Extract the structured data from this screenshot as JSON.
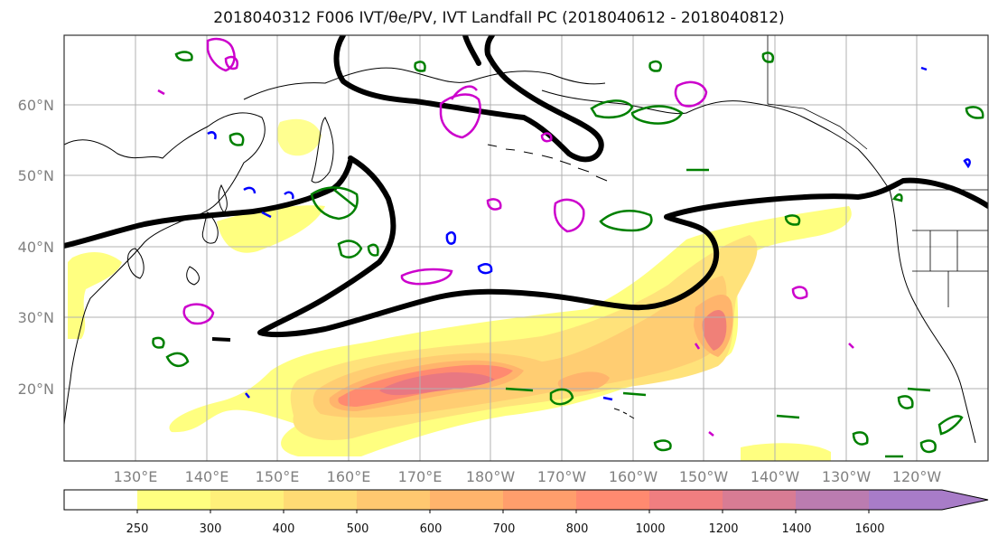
{
  "title": "2018040312 F006 IVT/θe/PV, IVT Landfall PC (2018040612 - 2018040812)",
  "lat_labels": [
    "60°N",
    "50°N",
    "40°N",
    "30°N",
    "20°N"
  ],
  "lon_labels": [
    "130°E",
    "140°E",
    "150°E",
    "160°E",
    "170°E",
    "180°W",
    "170°W",
    "160°W",
    "150°W",
    "140°W",
    "130°W",
    "120°W"
  ],
  "colorbar": {
    "tick_labels": [
      "250",
      "300",
      "400",
      "500",
      "600",
      "700",
      "800",
      "1000",
      "1200",
      "1400",
      "1600"
    ],
    "colors": [
      "#ffffff",
      "#ffff80",
      "#fff07a",
      "#ffdb74",
      "#ffc870",
      "#ffb46c",
      "#ff9e6c",
      "#ff8a70",
      "#f07e80",
      "#d87c94",
      "#bb7cb0",
      "#a87cc8"
    ]
  },
  "legend_colors": {
    "theta_e": "#000000",
    "pv_positive": "#008000",
    "pv_negative": "#0000ff",
    "landfall_pc": "#cc00cc"
  }
}
